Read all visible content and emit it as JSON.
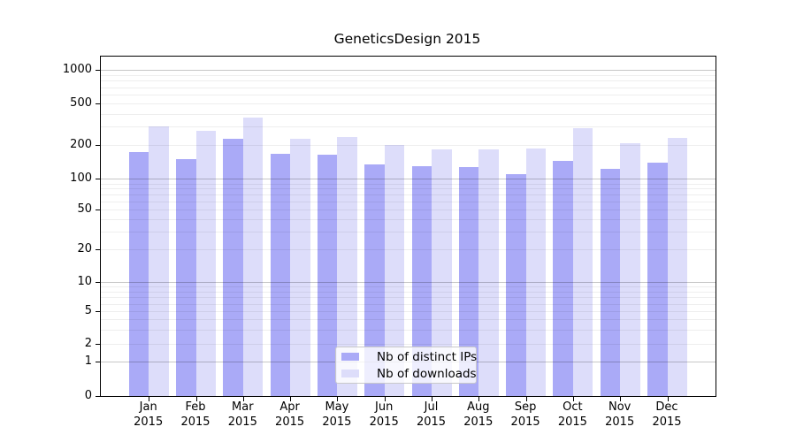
{
  "chart_data": {
    "type": "bar",
    "title": "GeneticsDesign 2015",
    "categories": [
      "Jan 2015",
      "Feb 2015",
      "Mar 2015",
      "Apr 2015",
      "May 2015",
      "Jun 2015",
      "Jul 2015",
      "Aug 2015",
      "Sep 2015",
      "Oct 2015",
      "Nov 2015",
      "Dec 2015"
    ],
    "series": [
      {
        "name": "Nb of distinct IPs",
        "color": "#aaaaf7",
        "values": [
          175,
          152,
          230,
          168,
          165,
          135,
          130,
          129,
          110,
          146,
          124,
          140
        ]
      },
      {
        "name": "Nb of downloads",
        "color": "#ddddfa",
        "values": [
          305,
          275,
          370,
          232,
          242,
          203,
          184,
          184,
          187,
          290,
          209,
          236
        ]
      }
    ],
    "yscale": "log",
    "yticks": [
      0,
      1,
      2,
      5,
      10,
      20,
      50,
      100,
      200,
      500,
      1000
    ],
    "ylim": [
      0,
      1000
    ],
    "grid": true,
    "legend_position": "bottom-center",
    "colors": {
      "bar_dark": "#aaaaf7",
      "bar_light": "#ddddfa",
      "frame": "#000000",
      "grid_major": "#c6c6c6",
      "grid_minor": "#ececec"
    }
  }
}
